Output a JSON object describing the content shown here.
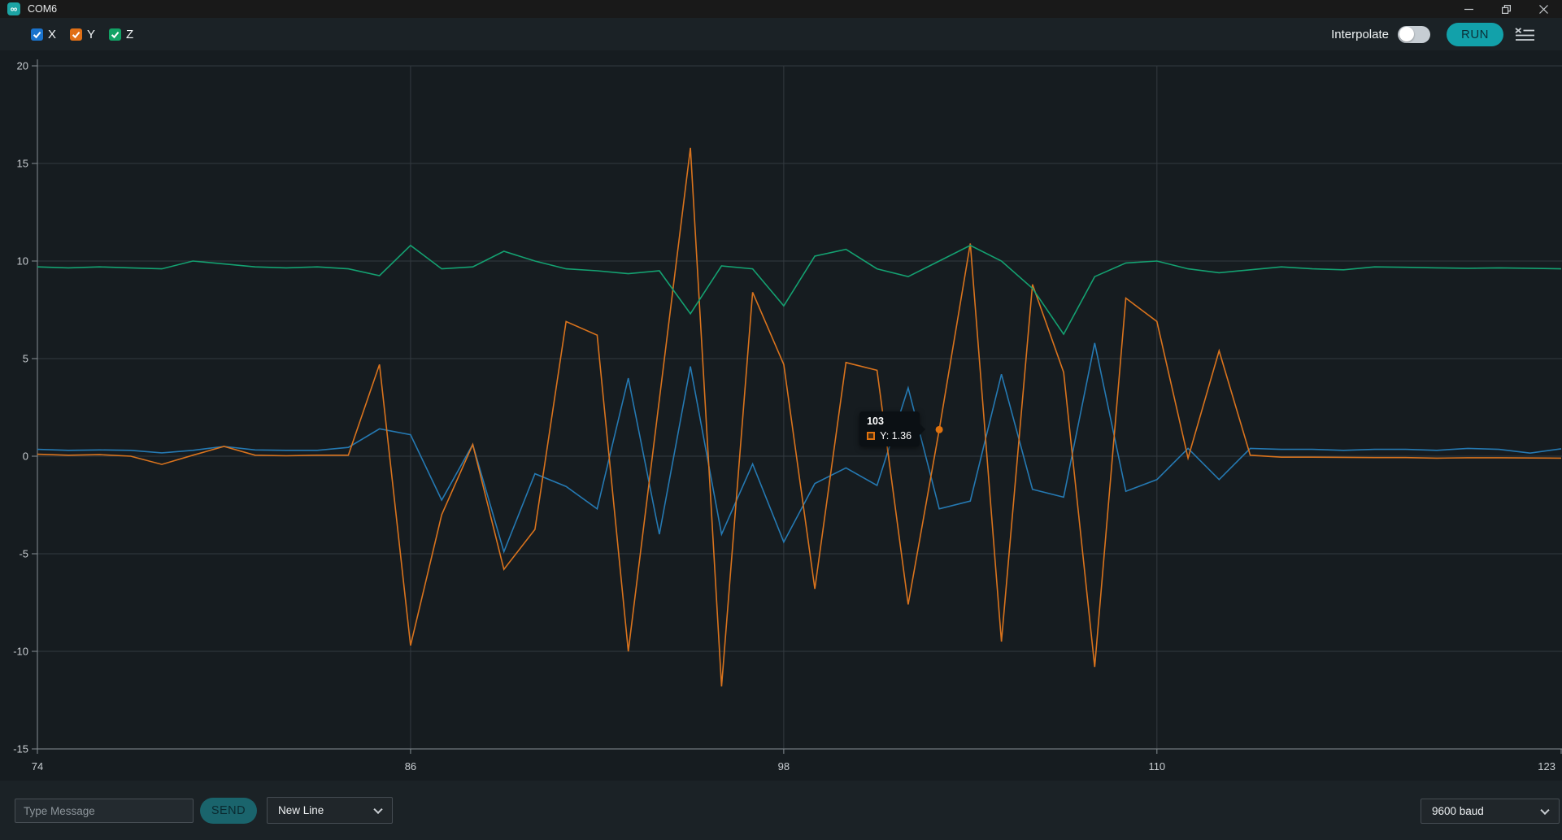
{
  "window": {
    "title": "COM6",
    "app_icon": "arduino-infinity",
    "titlebar_color": "#191919"
  },
  "toolbar": {
    "series_toggles": [
      {
        "label": "X",
        "color": "#1a73cc",
        "checked": true
      },
      {
        "label": "Y",
        "color": "#e06f15",
        "checked": true
      },
      {
        "label": "Z",
        "color": "#12a265",
        "checked": true
      }
    ],
    "interpolate_label": "Interpolate",
    "interpolate_on": false,
    "run_label": "RUN"
  },
  "colors": {
    "body_bg": "#1b2226",
    "chart_bg": "#161c20",
    "gridline": "#333a3f",
    "axis": "#868e93",
    "tick_text": "#c8cdd1",
    "accent_teal": "#12a1aa",
    "send_teal": "#1a646c",
    "tooltip_bg": "#0b1014"
  },
  "chart_data": {
    "type": "line",
    "title": "",
    "xlabel": "",
    "ylabel": "",
    "grid": true,
    "legend_position": "top-left checkboxes",
    "xlim": [
      74,
      123
    ],
    "ylim": [
      -15,
      20
    ],
    "x_ticks": [
      74,
      86,
      98,
      110,
      123
    ],
    "y_ticks": [
      20,
      15,
      10,
      5,
      0,
      -5,
      -10,
      -15
    ],
    "x": [
      74,
      75,
      76,
      77,
      78,
      79,
      80,
      81,
      82,
      83,
      84,
      85,
      86,
      87,
      88,
      89,
      90,
      91,
      92,
      93,
      94,
      95,
      96,
      97,
      98,
      99,
      100,
      101,
      102,
      103,
      104,
      105,
      106,
      107,
      108,
      109,
      110,
      111,
      112,
      113,
      114,
      115,
      116,
      117,
      118,
      119,
      120,
      121,
      122,
      123
    ],
    "series": [
      {
        "name": "X",
        "color": "#2579b2",
        "values": [
          0.35,
          0.3,
          0.32,
          0.3,
          0.17,
          0.3,
          0.5,
          0.32,
          0.3,
          0.3,
          0.45,
          1.4,
          1.1,
          -2.25,
          0.6,
          -4.9,
          -0.9,
          -1.55,
          -2.7,
          4.0,
          -4.0,
          4.6,
          -4.0,
          -0.4,
          -4.4,
          -1.4,
          -0.6,
          -1.5,
          3.5,
          -2.7,
          -2.3,
          4.2,
          -1.7,
          -2.1,
          5.8,
          -1.8,
          -1.2,
          0.4,
          -1.2,
          0.4,
          0.35,
          0.35,
          0.3,
          0.35,
          0.35,
          0.3,
          0.4,
          0.35,
          0.16,
          0.38
        ]
      },
      {
        "name": "Y",
        "color": "#d9731d",
        "values": [
          0.1,
          0.05,
          0.08,
          0.0,
          -0.42,
          0.05,
          0.5,
          0.05,
          0.02,
          0.05,
          0.05,
          4.7,
          -9.7,
          -3.0,
          0.6,
          -5.8,
          -3.75,
          6.9,
          6.2,
          -10.0,
          2.9,
          15.8,
          -11.8,
          8.4,
          4.7,
          -6.8,
          4.8,
          4.4,
          -7.6,
          1.36,
          10.9,
          -9.5,
          8.8,
          4.3,
          -10.8,
          8.1,
          6.9,
          -0.1,
          5.4,
          0.05,
          -0.05,
          -0.05,
          -0.06,
          -0.07,
          -0.07,
          -0.1,
          -0.08,
          -0.08,
          -0.09,
          -0.1
        ]
      },
      {
        "name": "Z",
        "color": "#14a171",
        "values": [
          9.7,
          9.65,
          9.7,
          9.65,
          9.6,
          10.0,
          9.85,
          9.7,
          9.65,
          9.7,
          9.6,
          9.25,
          10.8,
          9.6,
          9.7,
          10.5,
          10.0,
          9.6,
          9.5,
          9.35,
          9.5,
          7.3,
          9.75,
          9.6,
          7.7,
          10.25,
          10.6,
          9.6,
          9.2,
          10.0,
          10.8,
          10.0,
          8.6,
          6.25,
          9.2,
          9.9,
          10.0,
          9.6,
          9.4,
          9.55,
          9.7,
          9.6,
          9.55,
          9.7,
          9.68,
          9.65,
          9.63,
          9.65,
          9.63,
          9.6
        ]
      }
    ],
    "tooltip": {
      "x": 103,
      "series": "Y",
      "value": 1.36,
      "title": "103",
      "row_label": "Y: 1.36",
      "color": "#df720e"
    }
  },
  "bottombar": {
    "message_placeholder": "Type Message",
    "send_label": "SEND",
    "line_ending": "New Line",
    "baud": "9600 baud"
  }
}
